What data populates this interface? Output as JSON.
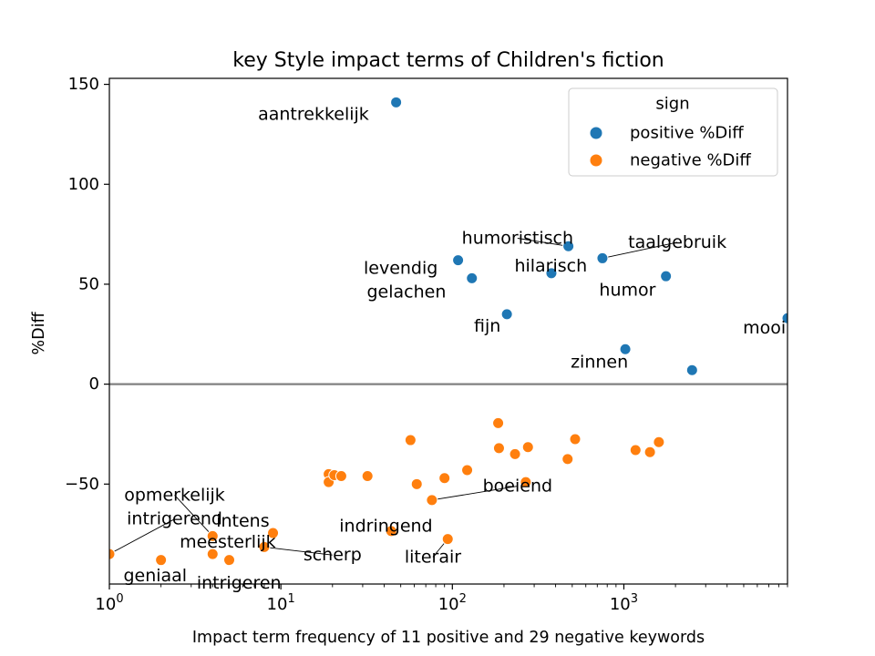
{
  "chart_data": {
    "type": "scatter",
    "title": "key Style impact terms of Children's fiction",
    "xlabel": "Impact term frequency of 11 positive and 29 negative keywords",
    "ylabel": "%Diff",
    "x_scale": "log",
    "xlim": [
      1,
      9000
    ],
    "ylim": [
      -100,
      153
    ],
    "x_ticks": [
      {
        "value": 1,
        "base": "10",
        "exp": "0"
      },
      {
        "value": 10,
        "base": "10",
        "exp": "1"
      },
      {
        "value": 100,
        "base": "10",
        "exp": "2"
      },
      {
        "value": 1000,
        "base": "10",
        "exp": "3"
      }
    ],
    "y_ticks": [
      {
        "value": 150,
        "label": "150"
      },
      {
        "value": 100,
        "label": "100"
      },
      {
        "value": 50,
        "label": "50"
      },
      {
        "value": 0,
        "label": "0"
      },
      {
        "value": -50,
        "label": "−50"
      }
    ],
    "zero_line": 0,
    "legend": {
      "title": "sign",
      "placement": "top-right",
      "entries": [
        {
          "label": "positive %Diff",
          "color": "#1f77b4"
        },
        {
          "label": "negative %Diff",
          "color": "#ff7f0e"
        }
      ]
    },
    "series": [
      {
        "name": "positive %Diff",
        "color": "#1f77b4",
        "points": [
          {
            "x": 47,
            "y": 141
          },
          {
            "x": 108,
            "y": 62
          },
          {
            "x": 130,
            "y": 53
          },
          {
            "x": 208,
            "y": 35
          },
          {
            "x": 378,
            "y": 55.5
          },
          {
            "x": 475,
            "y": 69
          },
          {
            "x": 750,
            "y": 63
          },
          {
            "x": 1020,
            "y": 17.5
          },
          {
            "x": 1760,
            "y": 54
          },
          {
            "x": 2500,
            "y": 7
          },
          {
            "x": 9000,
            "y": 33
          }
        ]
      },
      {
        "name": "negative %Diff",
        "color": "#ff7f0e",
        "points": [
          {
            "x": 1,
            "y": -85
          },
          {
            "x": 2,
            "y": -88
          },
          {
            "x": 4,
            "y": -76
          },
          {
            "x": 4,
            "y": -85
          },
          {
            "x": 5,
            "y": -88
          },
          {
            "x": 8,
            "y": -81.5
          },
          {
            "x": 9,
            "y": -74.5
          },
          {
            "x": 19,
            "y": -45
          },
          {
            "x": 19,
            "y": -49
          },
          {
            "x": 20.5,
            "y": -45.5
          },
          {
            "x": 22.5,
            "y": -46
          },
          {
            "x": 32,
            "y": -46
          },
          {
            "x": 44,
            "y": -73.5
          },
          {
            "x": 57,
            "y": -28
          },
          {
            "x": 62,
            "y": -50
          },
          {
            "x": 76,
            "y": -58
          },
          {
            "x": 90,
            "y": -47
          },
          {
            "x": 94,
            "y": -77.5
          },
          {
            "x": 122,
            "y": -43
          },
          {
            "x": 185,
            "y": -19.5
          },
          {
            "x": 187,
            "y": -32
          },
          {
            "x": 232,
            "y": -35
          },
          {
            "x": 268,
            "y": -49
          },
          {
            "x": 276,
            "y": -31.5
          },
          {
            "x": 470,
            "y": -37.5
          },
          {
            "x": 520,
            "y": -27.5
          },
          {
            "x": 1170,
            "y": -33
          },
          {
            "x": 1420,
            "y": -34
          },
          {
            "x": 1600,
            "y": -29
          }
        ]
      }
    ],
    "annotations": [
      {
        "text": "aantrekkelijk",
        "x": 47,
        "y": 141,
        "tx": 15.5,
        "ty": 135,
        "leader": false
      },
      {
        "text": "levendig",
        "x": 108,
        "y": 62,
        "tx": 50,
        "ty": 58,
        "leader": false
      },
      {
        "text": "gelachen",
        "x": 130,
        "y": 53,
        "tx": 54,
        "ty": 46,
        "leader": false
      },
      {
        "text": "fijn",
        "x": 208,
        "y": 35,
        "tx": 160,
        "ty": 29,
        "leader": false
      },
      {
        "text": "hilarisch",
        "x": 378,
        "y": 55.5,
        "tx": 375,
        "ty": 59,
        "leader": false
      },
      {
        "text": "humoristisch",
        "x": 475,
        "y": 69,
        "tx": 240,
        "ty": 73,
        "leader": true
      },
      {
        "text": "taalgebruik",
        "x": 750,
        "y": 63,
        "tx": 2050,
        "ty": 71,
        "leader": true
      },
      {
        "text": "humor",
        "x": 1760,
        "y": 54,
        "tx": 1050,
        "ty": 47,
        "leader": false
      },
      {
        "text": "mooi",
        "x": 9000,
        "y": 33,
        "tx": 6600,
        "ty": 28,
        "leader": false
      },
      {
        "text": "zinnen",
        "x": 1020,
        "y": 17.5,
        "tx": 720,
        "ty": 11,
        "leader": false
      },
      {
        "text": "boeiend",
        "x": 76,
        "y": -58,
        "tx": 240,
        "ty": -51,
        "leader": true
      },
      {
        "text": "opmerkelijk",
        "x": 4,
        "y": -76,
        "tx": 2.4,
        "ty": -55.5,
        "leader": true
      },
      {
        "text": "intrigerend",
        "x": 1,
        "y": -85,
        "tx": 2.4,
        "ty": -67.5,
        "leader": true
      },
      {
        "text": "intens",
        "x": 4,
        "y": -76,
        "tx": 6,
        "ty": -68.5,
        "leader": false
      },
      {
        "text": "indringend",
        "x": 44,
        "y": -73.5,
        "tx": 41,
        "ty": -71,
        "leader": false
      },
      {
        "text": "meesterlijk",
        "x": 4,
        "y": -85,
        "tx": 4.9,
        "ty": -79,
        "leader": false
      },
      {
        "text": "scherp",
        "x": 8,
        "y": -81.5,
        "tx": 20,
        "ty": -85.5,
        "leader": true
      },
      {
        "text": "literair",
        "x": 94,
        "y": -77.5,
        "tx": 77,
        "ty": -86.5,
        "leader": true
      },
      {
        "text": "geniaal",
        "x": 2,
        "y": -88,
        "tx": 1.85,
        "ty": -96,
        "leader": false
      },
      {
        "text": "intrigeren",
        "x": 5,
        "y": -88,
        "tx": 5.7,
        "ty": -99.5,
        "leader": false
      }
    ]
  }
}
